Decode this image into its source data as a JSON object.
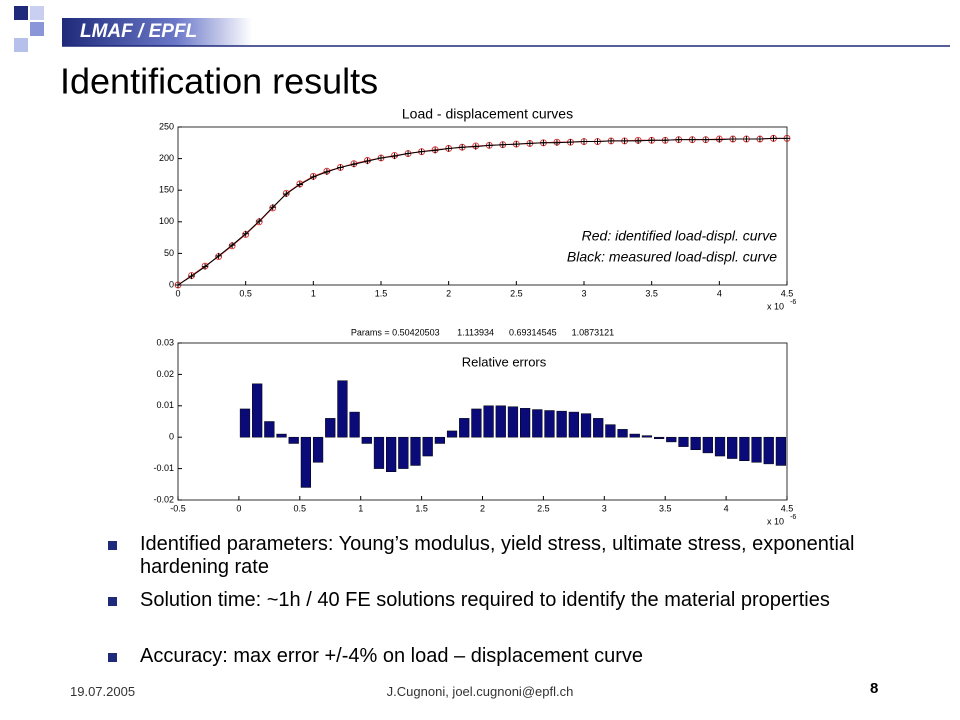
{
  "header": {
    "org": "LMAF / EPFL",
    "title": "Identification results"
  },
  "chart_data": [
    {
      "type": "line",
      "title": "Load - displacement curves",
      "x": [
        0,
        0.1,
        0.2,
        0.3,
        0.4,
        0.5,
        0.6,
        0.7,
        0.8,
        0.9,
        1.0,
        1.1,
        1.2,
        1.3,
        1.4,
        1.5,
        1.6,
        1.7,
        1.8,
        1.9,
        2.0,
        2.1,
        2.2,
        2.3,
        2.4,
        2.5,
        2.6,
        2.7,
        2.8,
        2.9,
        3.0,
        3.1,
        3.2,
        3.3,
        3.4,
        3.5,
        3.6,
        3.7,
        3.8,
        3.9,
        4.0,
        4.1,
        4.2,
        4.3,
        4.4,
        4.5
      ],
      "series": [
        {
          "name": "Red: identified load-displ. curve",
          "color": "#e03030",
          "marker": "circle",
          "values": [
            0,
            15,
            30,
            45,
            62,
            80,
            100,
            122,
            145,
            160,
            172,
            180,
            186,
            192,
            197,
            201,
            205,
            208,
            211,
            214,
            216,
            218,
            220,
            221,
            222,
            223,
            224,
            225,
            226,
            226,
            227,
            227,
            228,
            228,
            229,
            229,
            229,
            230,
            230,
            230,
            231,
            231,
            231,
            231,
            232,
            232
          ]
        },
        {
          "name": "Black: measured load-displ. curve",
          "color": "#000000",
          "marker": "plus",
          "values": [
            0,
            14,
            29,
            46,
            63,
            81,
            101,
            123,
            144,
            159,
            171,
            179,
            186,
            191,
            196,
            201,
            204,
            208,
            211,
            213,
            216,
            218,
            219,
            221,
            222,
            223,
            224,
            225,
            225,
            226,
            227,
            227,
            228,
            228,
            228,
            229,
            229,
            230,
            230,
            230,
            230,
            231,
            231,
            231,
            232,
            232
          ]
        }
      ],
      "xlim": [
        0,
        4.5
      ],
      "xticks": [
        0,
        0.5,
        1,
        1.5,
        2,
        2.5,
        3,
        3.5,
        4,
        4.5
      ],
      "ylim": [
        0,
        250
      ],
      "yticks": [
        0,
        50,
        100,
        150,
        200,
        250
      ],
      "x_multiplier": "x 10",
      "x_multiplier_exp": "-6"
    },
    {
      "type": "bar",
      "title": "Relative errors",
      "subtitle": "Params = 0.50420503       1.113934      0.69314545      1.0873121",
      "x": [
        0.05,
        0.15,
        0.25,
        0.35,
        0.45,
        0.55,
        0.65,
        0.75,
        0.85,
        0.95,
        1.05,
        1.15,
        1.25,
        1.35,
        1.45,
        1.55,
        1.65,
        1.75,
        1.85,
        1.95,
        2.05,
        2.15,
        2.25,
        2.35,
        2.45,
        2.55,
        2.65,
        2.75,
        2.85,
        2.95,
        3.05,
        3.15,
        3.25,
        3.35,
        3.45,
        3.55,
        3.65,
        3.75,
        3.85,
        3.95,
        4.05,
        4.15,
        4.25,
        4.35,
        4.45
      ],
      "values": [
        0.009,
        0.017,
        0.005,
        0.001,
        -0.002,
        -0.016,
        -0.008,
        0.006,
        0.018,
        0.008,
        -0.002,
        -0.01,
        -0.011,
        -0.01,
        -0.009,
        -0.006,
        -0.002,
        0.002,
        0.006,
        0.009,
        0.01,
        0.01,
        0.0097,
        0.0092,
        0.0088,
        0.0085,
        0.0083,
        0.008,
        0.0075,
        0.006,
        0.004,
        0.0025,
        0.001,
        0.0005,
        -0.0005,
        -0.0015,
        -0.003,
        -0.004,
        -0.005,
        -0.006,
        -0.0068,
        -0.0075,
        -0.008,
        -0.0085,
        -0.009
      ],
      "color": "#0a0a78",
      "xlim": [
        -0.5,
        4.5
      ],
      "xticks": [
        -0.5,
        0,
        0.5,
        1,
        1.5,
        2,
        2.5,
        3,
        3.5,
        4,
        4.5
      ],
      "ylim": [
        -0.02,
        0.03
      ],
      "yticks": [
        -0.02,
        -0.01,
        0,
        0.01,
        0.02,
        0.03
      ],
      "x_multiplier": "x 10",
      "x_multiplier_exp": "-6"
    }
  ],
  "bullets": [
    "Identified parameters: Young’s modulus, yield stress, ultimate stress, exponential hardening rate",
    "Solution time: ~1h / 40 FE solutions required to identify the material properties",
    "Accuracy: max error +/-4% on load – displacement curve"
  ],
  "footer": {
    "date": "19.07.2005",
    "author": "J.Cugnoni, joel.cugnoni@epfl.ch",
    "page": "8"
  }
}
